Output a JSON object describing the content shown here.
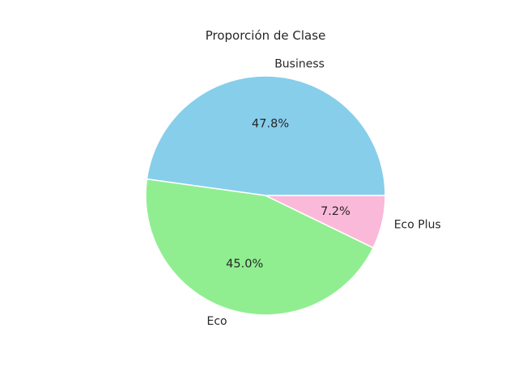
{
  "chart_data": {
    "type": "pie",
    "title": "Proporción de Clase",
    "categories": [
      "Business",
      "Eco",
      "Eco Plus"
    ],
    "values": [
      47.8,
      45.0,
      7.2
    ],
    "percent_labels": [
      "47.8%",
      "45.0%",
      "7.2%"
    ],
    "colors": [
      "#87ceeb",
      "#90ee90",
      "#fbb9d9"
    ],
    "start_angle_deg": 0,
    "direction": "counterclockwise",
    "legend": "none"
  }
}
